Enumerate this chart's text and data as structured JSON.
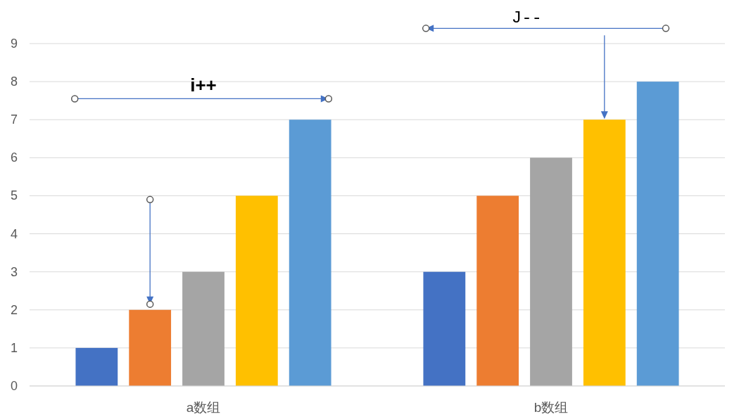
{
  "chart_data": {
    "type": "bar",
    "categories": [
      "a数组",
      "b数组"
    ],
    "series": [
      {
        "color": "#4472c4",
        "values": [
          1,
          3
        ]
      },
      {
        "color": "#ed7d31",
        "values": [
          2,
          5
        ]
      },
      {
        "color": "#a5a5a5",
        "values": [
          3,
          6
        ]
      },
      {
        "color": "#ffc000",
        "values": [
          5,
          7
        ]
      },
      {
        "color": "#5b9bd5",
        "values": [
          7,
          8
        ]
      }
    ],
    "ylim": [
      0,
      9
    ],
    "yticks": [
      0,
      1,
      2,
      3,
      4,
      5,
      6,
      7,
      8,
      9
    ],
    "grid": "y",
    "annotations": [
      "i++",
      "J--"
    ]
  }
}
